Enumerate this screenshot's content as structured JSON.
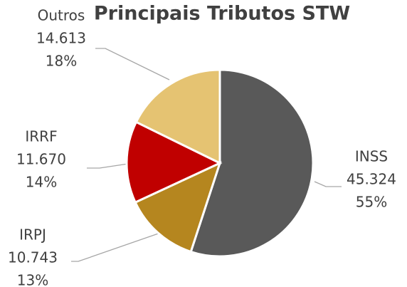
{
  "chart_data": {
    "type": "pie",
    "title": "Principais Tributos STW",
    "categories": [
      "INSS",
      "IRPJ",
      "IRRF",
      "Outros"
    ],
    "values": [
      45324,
      10743,
      11670,
      14613
    ],
    "value_labels": [
      "45.324",
      "10.743",
      "11.670",
      "14.613"
    ],
    "percent_labels": [
      "55%",
      "13%",
      "14%",
      "18%"
    ],
    "colors": [
      "#595959",
      "#b5861f",
      "#c00000",
      "#e5c372"
    ]
  }
}
